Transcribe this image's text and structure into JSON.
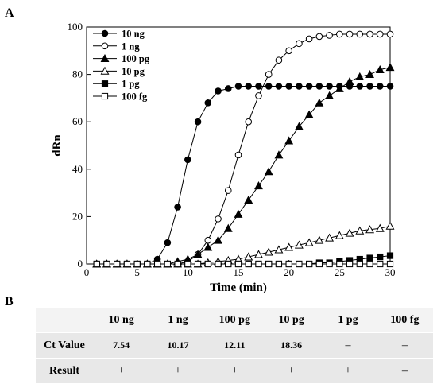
{
  "panel_a": "A",
  "panel_b": "B",
  "chart_data": {
    "type": "line",
    "xlabel": "Time (min)",
    "ylabel": "dRn",
    "xlim": [
      0,
      30
    ],
    "ylim": [
      0,
      100
    ],
    "xticks": [
      0,
      5,
      10,
      15,
      20,
      25,
      30
    ],
    "yticks": [
      0,
      20,
      40,
      60,
      80,
      100
    ],
    "legend_position": "top-left",
    "x": [
      1,
      2,
      3,
      4,
      5,
      6,
      7,
      8,
      9,
      10,
      11,
      12,
      13,
      14,
      15,
      16,
      17,
      18,
      19,
      20,
      21,
      22,
      23,
      24,
      25,
      26,
      27,
      28,
      29,
      30
    ],
    "series": [
      {
        "name": "10 ng",
        "marker": "circle-filled",
        "values": [
          0,
          0,
          0,
          0,
          0,
          0,
          2,
          9,
          24,
          44,
          60,
          68,
          73,
          74,
          75,
          75,
          75,
          75,
          75,
          75,
          75,
          75,
          75,
          75,
          75,
          75,
          75,
          75,
          75,
          75
        ]
      },
      {
        "name": "1 ng",
        "marker": "circle-open",
        "values": [
          0,
          0,
          0,
          0,
          0,
          0,
          0,
          0,
          0,
          1,
          4,
          10,
          19,
          31,
          46,
          60,
          71,
          80,
          86,
          90,
          93,
          95,
          96,
          96.5,
          97,
          97,
          97,
          97,
          97,
          97
        ]
      },
      {
        "name": "100 pg",
        "marker": "triangle-filled",
        "values": [
          0,
          0,
          0,
          0,
          0,
          0,
          0,
          0,
          1,
          2,
          4,
          7,
          10,
          15,
          21,
          27,
          33,
          39,
          46,
          52,
          58,
          63,
          68,
          71,
          74,
          77,
          79,
          80,
          82,
          83
        ]
      },
      {
        "name": "10 pg",
        "marker": "triangle-open",
        "values": [
          0,
          0,
          0,
          0,
          0,
          0,
          0,
          0,
          0,
          0,
          0,
          0.5,
          1,
          1.5,
          2,
          3,
          4,
          5,
          6,
          7,
          8,
          9,
          10,
          11,
          12,
          13,
          14,
          14.5,
          15,
          16
        ]
      },
      {
        "name": "1 pg",
        "marker": "square-filled",
        "values": [
          0,
          0,
          0,
          0,
          0,
          0,
          0,
          0,
          0,
          0,
          0,
          0,
          0,
          0,
          0,
          0,
          0,
          0,
          0,
          0,
          0,
          0,
          0.5,
          0.5,
          1,
          1.5,
          2,
          2.5,
          3,
          3.5
        ]
      },
      {
        "name": "100 fg",
        "marker": "square-open",
        "values": [
          0,
          0,
          0,
          0,
          0,
          0,
          0,
          0,
          0,
          0,
          0,
          0,
          0,
          0,
          0,
          0,
          0,
          0,
          0,
          0,
          0,
          0,
          0,
          0,
          0,
          0,
          0,
          0,
          0,
          0
        ]
      }
    ]
  },
  "table": {
    "columns": [
      "",
      "10 ng",
      "1 ng",
      "100 pg",
      "10 pg",
      "1 pg",
      "100 fg"
    ],
    "rows": [
      {
        "label": "Ct Value",
        "cells": [
          "7.54",
          "10.17",
          "12.11",
          "18.36",
          "–",
          "–"
        ]
      },
      {
        "label": "Result",
        "cells": [
          "+",
          "+",
          "+",
          "+",
          "+",
          "–"
        ]
      }
    ]
  }
}
